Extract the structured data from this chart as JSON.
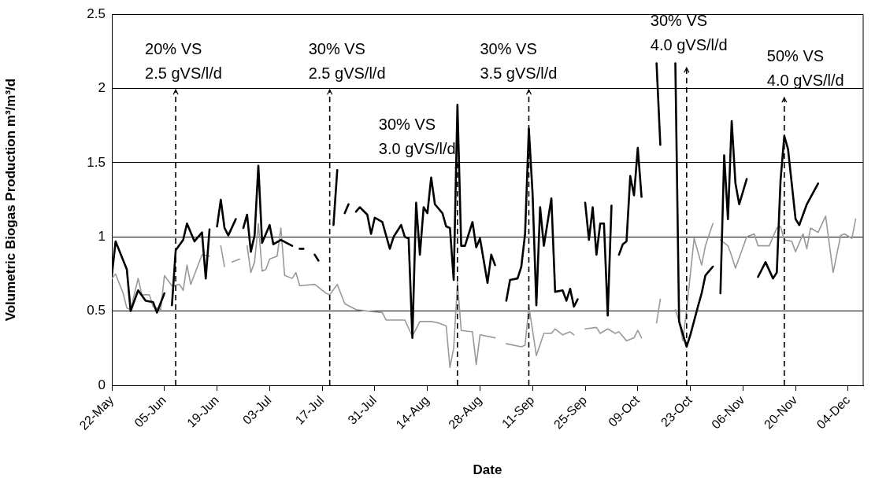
{
  "chart_data": {
    "type": "line",
    "xlabel": "Date",
    "ylabel": "Volumetric Biogas Production m³/m³/d",
    "xlim": [
      "--05-22",
      "--12-08"
    ],
    "xticks": [
      {
        "value": "--05-22",
        "label": "22-May"
      },
      {
        "value": "--06-05",
        "label": "05-Jun"
      },
      {
        "value": "--06-19",
        "label": "19-Jun"
      },
      {
        "value": "--07-03",
        "label": "03-Jul"
      },
      {
        "value": "--07-17",
        "label": "17-Jul"
      },
      {
        "value": "--07-31",
        "label": "31-Jul"
      },
      {
        "value": "--08-14",
        "label": "14-Aug"
      },
      {
        "value": "--08-28",
        "label": "28-Aug"
      },
      {
        "value": "--09-11",
        "label": "11-Sep"
      },
      {
        "value": "--09-25",
        "label": "25-Sep"
      },
      {
        "value": "--10-09",
        "label": "09-Oct"
      },
      {
        "value": "--10-23",
        "label": "23-Oct"
      },
      {
        "value": "--11-06",
        "label": "06-Nov"
      },
      {
        "value": "--11-20",
        "label": "20-Nov"
      },
      {
        "value": "--12-04",
        "label": "04-Dec"
      }
    ],
    "ylim": [
      0,
      2.5
    ],
    "yticks": [
      0,
      0.5,
      1,
      1.5,
      2,
      2.5
    ],
    "grid": "y",
    "legend": false,
    "series": [
      {
        "color": "#000000",
        "x": [
          "--05-22",
          "--05-23",
          "--05-26",
          "--05-27",
          "--05-29",
          "--05-31",
          "--06-02",
          "--06-03",
          "--06-05",
          "--06-06",
          "--06-07",
          "--06-08",
          "--06-10",
          "--06-11",
          "--06-13",
          "--06-15",
          "--06-16",
          "--06-17",
          "--06-18",
          "--06-19",
          "--06-20",
          "--06-21",
          "--06-22",
          "--06-24",
          "--06-25",
          "--06-26",
          "--06-27",
          "--06-28",
          "--06-29",
          "--06-30",
          "--07-01",
          "--07-03",
          "--07-04",
          "--07-06",
          "--07-09",
          "--07-10",
          "--07-11",
          "--07-12",
          "--07-13",
          "--07-15",
          "--07-16",
          "--07-18",
          "--07-20",
          "--07-21",
          "--07-22",
          "--07-23",
          "--07-24",
          "--07-25",
          "--07-26",
          "--07-27",
          "--07-29",
          "--07-30",
          "--07-31",
          "--08-02",
          "--08-04",
          "--08-05",
          "--08-07",
          "--08-08",
          "--08-09",
          "--08-10",
          "--08-11",
          "--08-12",
          "--08-13",
          "--08-14",
          "--08-15",
          "--08-16",
          "--08-18",
          "--08-19",
          "--08-20",
          "--08-21",
          "--08-22",
          "--08-23",
          "--08-24",
          "--08-26",
          "--08-27",
          "--08-28",
          "--08-30",
          "--08-31",
          "--09-01",
          "--09-03",
          "--09-04",
          "--09-05",
          "--09-07",
          "--09-08",
          "--09-09",
          "--09-10",
          "--09-11",
          "--09-12",
          "--09-13",
          "--09-14",
          "--09-16",
          "--09-17",
          "--09-19",
          "--09-20",
          "--09-21",
          "--09-22",
          "--09-23",
          "--09-24",
          "--09-25",
          "--09-26",
          "--09-27",
          "--09-28",
          "--09-29",
          "--09-30",
          "--10-01",
          "--10-02",
          "--10-03",
          "--10-04",
          "--10-05",
          "--10-06",
          "--10-07",
          "--10-08",
          "--10-09",
          "--10-10",
          "--10-12",
          "--10-14",
          "--10-15",
          "--10-17",
          "--10-19",
          "--10-20",
          "--10-22",
          "--10-23",
          "--10-25",
          "--10-26",
          "--10-27",
          "--10-28",
          "--10-29",
          "--10-30",
          "--10-31",
          "--11-01",
          "--11-02",
          "--11-03",
          "--11-04",
          "--11-05",
          "--11-07",
          "--11-08",
          "--11-10",
          "--11-12",
          "--11-14",
          "--11-15",
          "--11-16",
          "--11-17",
          "--11-18",
          "--11-20",
          "--11-21",
          "--11-23",
          "--11-26"
        ],
        "values": [
          0.74,
          0.97,
          0.78,
          0.5,
          0.64,
          0.57,
          0.56,
          0.49,
          0.62,
          null,
          0.54,
          0.91,
          0.98,
          1.09,
          0.97,
          1.03,
          0.72,
          1.05,
          null,
          1.07,
          1.25,
          1.06,
          1.01,
          1.12,
          null,
          1.06,
          1.15,
          0.9,
          1.01,
          1.48,
          0.96,
          1.08,
          0.95,
          0.98,
          0.94,
          null,
          0.92,
          0.92,
          null,
          0.88,
          0.84,
          null,
          1.08,
          1.45,
          null,
          1.16,
          1.22,
          null,
          1.17,
          1.2,
          1.15,
          1.02,
          1.13,
          1.1,
          0.92,
          1.0,
          1.08,
          1.0,
          0.99,
          0.32,
          1.23,
          0.88,
          1.2,
          1.16,
          1.4,
          1.22,
          1.16,
          1.07,
          1.06,
          0.71,
          1.89,
          0.94,
          0.94,
          1.1,
          0.93,
          0.99,
          0.69,
          0.88,
          0.81,
          null,
          0.57,
          0.71,
          0.72,
          0.8,
          1.02,
          1.73,
          1.29,
          0.54,
          1.2,
          0.94,
          1.26,
          0.63,
          0.64,
          0.57,
          0.65,
          0.53,
          0.58,
          null,
          1.23,
          0.98,
          1.2,
          0.88,
          1.09,
          1.09,
          0.47,
          1.21,
          null,
          0.88,
          0.95,
          0.97,
          1.41,
          1.28,
          1.6,
          1.27,
          null,
          2.17,
          1.62,
          null,
          2.17,
          0.43,
          0.26,
          0.34,
          0.53,
          0.62,
          0.74,
          0.77,
          0.8,
          null,
          0.62,
          1.55,
          1.12,
          1.78,
          1.36,
          1.22,
          1.39,
          null,
          0.73,
          0.83,
          0.72,
          0.76,
          1.38,
          1.68,
          1.59,
          1.12,
          1.08,
          1.22,
          1.36
        ]
      },
      {
        "color": "#999999",
        "x": [
          "--05-22",
          "--05-23",
          "--05-25",
          "--05-26",
          "--05-27",
          "--05-29",
          "--05-30",
          "--06-01",
          "--06-02",
          "--06-04",
          "--06-05",
          "--06-07",
          "--06-09",
          "--06-10",
          "--06-11",
          "--06-12",
          "--06-15",
          "--06-17",
          "--06-18",
          "--06-20",
          "--06-21",
          "--06-22",
          "--06-23",
          "--06-25",
          "--06-26",
          "--06-27",
          "--06-28",
          "--06-29",
          "--06-30",
          "--07-01",
          "--07-02",
          "--07-03",
          "--07-05",
          "--07-06",
          "--07-07",
          "--07-09",
          "--07-10",
          "--07-11",
          "--07-15",
          "--07-18",
          "--07-19",
          "--07-21",
          "--07-23",
          "--07-26",
          "--07-29",
          "--08-02",
          "--08-03",
          "--08-08",
          "--08-10",
          "--08-12",
          "--08-15",
          "--08-17",
          "--08-19",
          "--08-20",
          "--08-21",
          "--08-22",
          "--08-23",
          "--08-26",
          "--08-27",
          "--08-28",
          "--09-01",
          "--09-03",
          "--09-04",
          "--09-08",
          "--09-09",
          "--09-10",
          "--09-11",
          "--09-12",
          "--09-14",
          "--09-16",
          "--09-17",
          "--09-19",
          "--09-21",
          "--09-22",
          "--09-24",
          "--09-25",
          "--09-28",
          "--09-29",
          "--10-01",
          "--10-03",
          "--10-04",
          "--10-06",
          "--10-08",
          "--10-09",
          "--10-10",
          "--10-12",
          "--10-14",
          "--10-15",
          "--10-17",
          "--10-19",
          "--10-20",
          "--10-21",
          "--10-22",
          "--10-24",
          "--10-26",
          "--10-27",
          "--10-29",
          "--10-30",
          "--10-31",
          "--11-02",
          "--11-03",
          "--11-04",
          "--11-07",
          "--11-09",
          "--11-10",
          "--11-13",
          "--11-15",
          "--11-16",
          "--11-17",
          "--11-19",
          "--11-20",
          "--11-22",
          "--11-23",
          "--11-24",
          "--11-26",
          "--11-28",
          "--11-30",
          "--12-02",
          "--12-03",
          "--12-05",
          "--12-06"
        ],
        "values": [
          0.72,
          0.75,
          0.62,
          0.52,
          0.51,
          0.72,
          0.61,
          0.61,
          0.53,
          0.51,
          0.74,
          0.67,
          0.68,
          0.64,
          0.81,
          0.68,
          0.88,
          0.87,
          null,
          0.94,
          0.8,
          null,
          0.83,
          0.85,
          null,
          0.94,
          0.76,
          0.83,
          1.09,
          0.77,
          0.78,
          0.85,
          0.87,
          1.06,
          0.74,
          0.72,
          0.76,
          0.67,
          0.68,
          0.62,
          0.61,
          0.68,
          0.55,
          0.51,
          0.5,
          0.49,
          0.44,
          0.44,
          0.33,
          0.43,
          0.43,
          0.42,
          0.4,
          0.12,
          0.25,
          0.69,
          0.37,
          0.36,
          0.14,
          0.34,
          0.32,
          null,
          0.28,
          0.26,
          0.27,
          0.53,
          0.37,
          0.2,
          0.35,
          0.35,
          0.38,
          0.34,
          0.36,
          0.34,
          null,
          0.38,
          0.39,
          0.35,
          0.38,
          0.35,
          0.36,
          0.3,
          0.32,
          0.37,
          0.32,
          null,
          0.42,
          0.58,
          null,
          0.51,
          0.43,
          0.3,
          0.51,
          0.99,
          0.81,
          0.94,
          1.09,
          null,
          0.98,
          0.94,
          0.87,
          0.79,
          1.0,
          1.02,
          0.94,
          0.94,
          1.06,
          1.07,
          0.98,
          0.97,
          0.9,
          1.02,
          0.92,
          1.06,
          1.03,
          1.14,
          0.76,
          1.01,
          1.02,
          0.99,
          1.12
        ]
      }
    ],
    "ref_lines": [
      {
        "axis": "x",
        "value": "--06-08",
        "label": "20% VS\n2.5 gVS/l/d",
        "line_style": "dashed"
      },
      {
        "axis": "x",
        "value": "--07-19",
        "label": "30% VS\n2.5 gVS/l/d",
        "line_style": "dashed"
      },
      {
        "axis": "x",
        "value": "--08-22",
        "label": "30% VS\n3.0 gVS/l/d",
        "line_style": "dashed"
      },
      {
        "axis": "x",
        "value": "--09-10",
        "label": "30% VS\n3.5 gVS/l/d",
        "line_style": "dashed"
      },
      {
        "axis": "x",
        "value": "--10-22",
        "label": "30% VS\n4.0 gVS/l/d",
        "line_style": "dashed"
      },
      {
        "axis": "x",
        "value": "--11-17",
        "label": "50% VS\n4.0 gVS/l/d",
        "line_style": "dashed"
      }
    ]
  }
}
